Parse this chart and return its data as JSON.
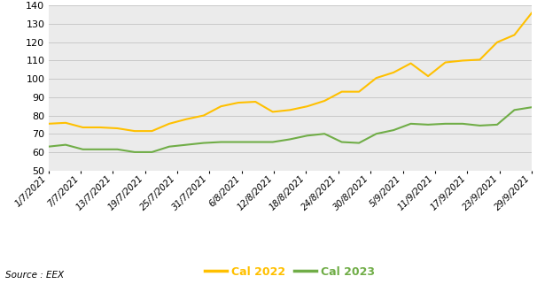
{
  "source": "Source : EEX",
  "ylim": [
    50,
    140
  ],
  "yticks": [
    50,
    60,
    70,
    80,
    90,
    100,
    110,
    120,
    130,
    140
  ],
  "legend_labels": [
    "Cal 2022",
    "Cal 2023"
  ],
  "cal2022_color": "#FFC000",
  "cal2023_color": "#70AD47",
  "background_color": "#EBEBEB",
  "grid_color": "#C8C8C8",
  "xtick_labels": [
    "1/7/2021",
    "7/7/2021",
    "13/7/2021",
    "19/7/2021",
    "25/7/2021",
    "31/7/2021",
    "6/8/2021",
    "12/8/2021",
    "18/8/2021",
    "24/8/2021",
    "30/8/2021",
    "5/9/2021",
    "11/9/2021",
    "17/9/2021",
    "23/9/2021",
    "29/9/2021"
  ],
  "cal2022_values": [
    75.5,
    76.0,
    73.5,
    73.5,
    73.0,
    71.5,
    71.5,
    75.5,
    78.0,
    80.0,
    85.0,
    87.0,
    87.5,
    82.0,
    83.0,
    85.0,
    88.0,
    93.0,
    93.0,
    100.5,
    103.5,
    108.5,
    101.5,
    109.0,
    110.0,
    110.5,
    120.0,
    124.0,
    136.0
  ],
  "cal2023_values": [
    63.0,
    64.0,
    61.5,
    61.5,
    61.5,
    60.0,
    60.0,
    63.0,
    64.0,
    65.0,
    65.5,
    65.5,
    65.5,
    65.5,
    67.0,
    69.0,
    70.0,
    65.5,
    65.0,
    70.0,
    72.0,
    75.5,
    75.0,
    75.5,
    75.5,
    74.5,
    75.0,
    83.0,
    84.5
  ],
  "num_points": 29,
  "linewidth": 1.5
}
